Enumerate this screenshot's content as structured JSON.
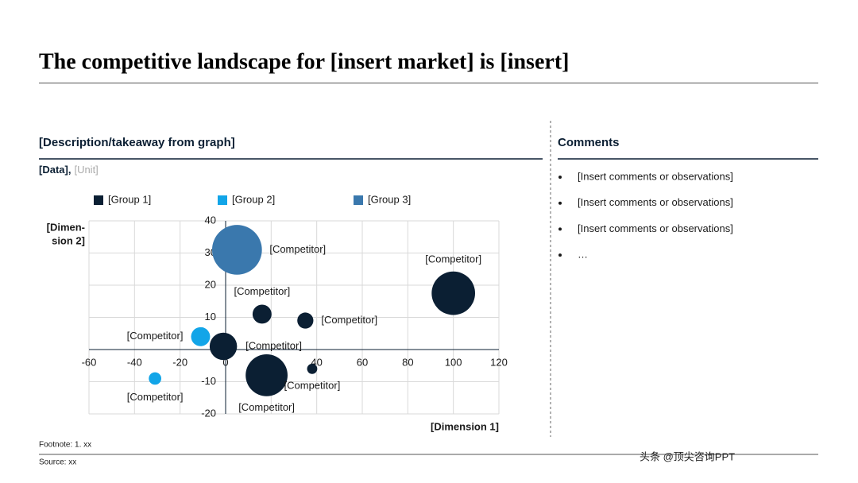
{
  "header": {
    "title": "The competitive landscape for [insert market] is [insert]"
  },
  "chart_panel": {
    "heading": "[Description/takeaway from graph]",
    "data_label": "[Data],",
    "unit_label": "[Unit]"
  },
  "chart_data": {
    "type": "bubble",
    "x_label": "[Dimension 1]",
    "y_label": [
      "[Dimen-",
      "sion 2]"
    ],
    "xlim": [
      -60,
      120
    ],
    "ylim": [
      -20,
      40
    ],
    "xticks": [
      -60,
      -40,
      -20,
      0,
      20,
      40,
      60,
      80,
      100,
      120
    ],
    "yticks": [
      -20,
      -10,
      0,
      10,
      20,
      30,
      40
    ],
    "grid": true,
    "series": [
      {
        "name": "[Group 1]",
        "color": "#0b1f33",
        "x": [
          100,
          16,
          35,
          -1,
          18,
          38
        ],
        "values": [
          17.5,
          11,
          9,
          1,
          -8,
          -6
        ],
        "sizes": [
          73,
          14,
          10,
          29,
          68,
          4
        ],
        "labels": [
          "[Competitor]",
          "[Competitor]",
          "[Competitor]",
          "[Competitor]",
          "[Competitor]",
          "[Competitor]"
        ]
      },
      {
        "name": "[Group 2]",
        "color": "#12a5e8",
        "x": [
          -11,
          -31
        ],
        "values": [
          4,
          -9
        ],
        "sizes": [
          14,
          6
        ],
        "labels": [
          "[Competitor]",
          "[Competitor]"
        ]
      },
      {
        "name": "[Group 3]",
        "color": "#3a78ad",
        "x": [
          5
        ],
        "values": [
          31
        ],
        "sizes": [
          96
        ],
        "labels": [
          "[Competitor]"
        ]
      }
    ]
  },
  "comments": {
    "heading": "Comments",
    "items": [
      "[Insert comments or observations]",
      "[Insert comments or observations]",
      "[Insert comments or observations]",
      "…"
    ]
  },
  "footer": {
    "footnote": "Footnote: 1. xx",
    "source": "Source: xx",
    "watermark": "头条 @顶尖咨询PPT"
  }
}
